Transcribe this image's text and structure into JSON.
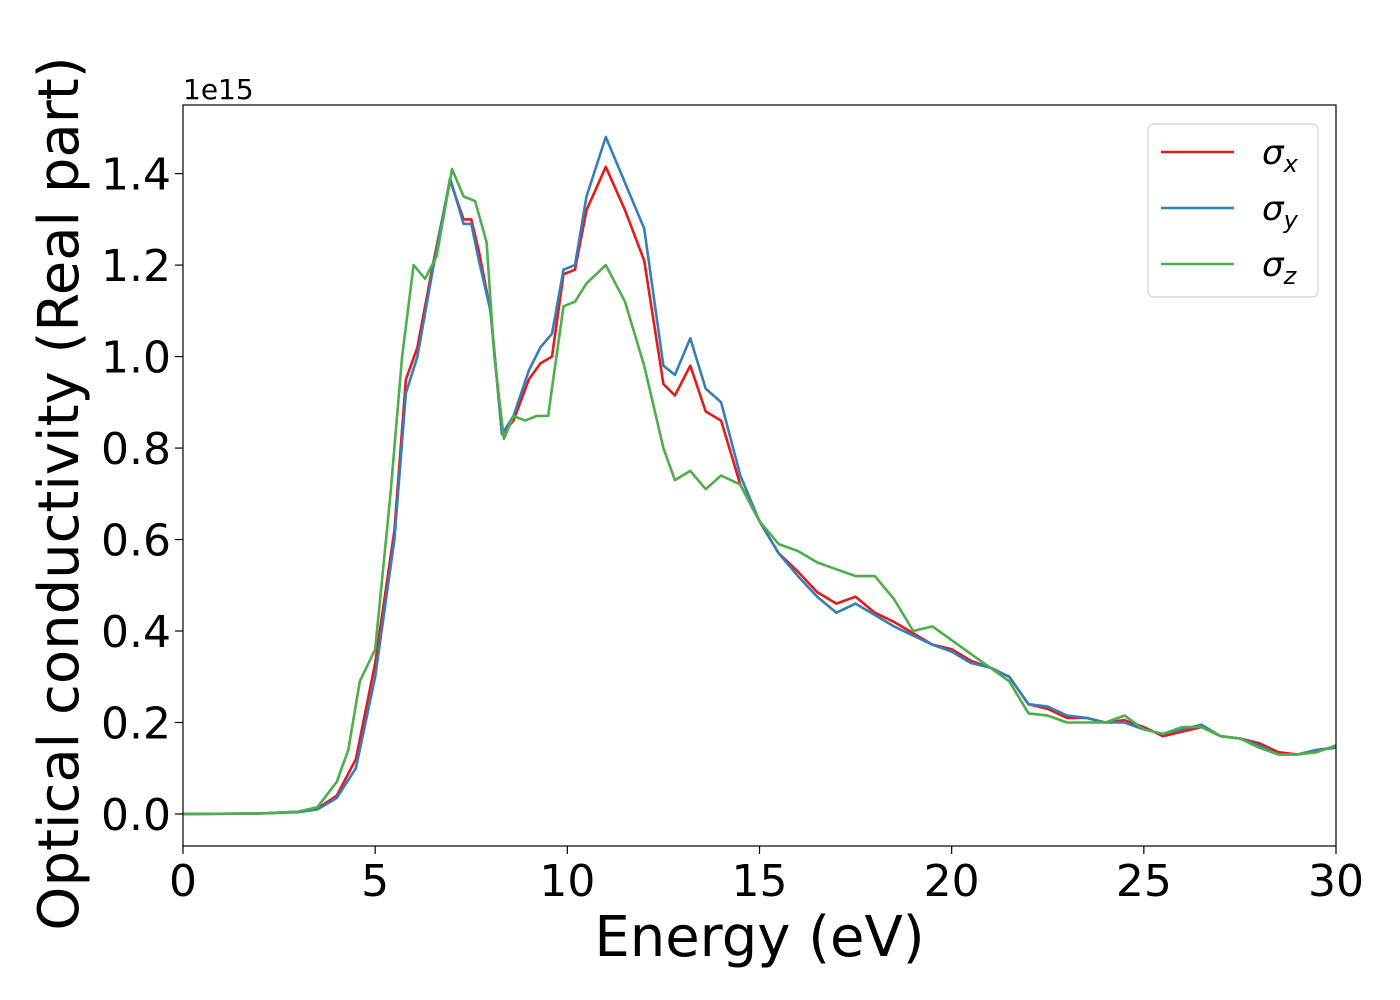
{
  "chart_data": {
    "type": "line",
    "xlabel": "Energy (eV)",
    "ylabel": "Optical conductivity (Real part)",
    "y_offset_text": "1e15",
    "xlim": [
      0,
      30
    ],
    "ylim": [
      -0.07,
      1.55
    ],
    "x_ticks": [
      0,
      5,
      10,
      15,
      20,
      25,
      30
    ],
    "x_tick_labels": [
      "0",
      "5",
      "10",
      "15",
      "20",
      "25",
      "30"
    ],
    "y_ticks": [
      0.0,
      0.2,
      0.4,
      0.6,
      0.8,
      1.0,
      1.2,
      1.4
    ],
    "y_tick_labels": [
      "0.0",
      "0.2",
      "0.4",
      "0.6",
      "0.8",
      "1.0",
      "1.2",
      "1.4"
    ],
    "grid": false,
    "legend_position": "top-right",
    "series": [
      {
        "name": "σ",
        "subscript": "x",
        "color": "#e41a1c",
        "points": [
          [
            0,
            0
          ],
          [
            2,
            0.001
          ],
          [
            3,
            0.005
          ],
          [
            3.5,
            0.012
          ],
          [
            4,
            0.04
          ],
          [
            4.5,
            0.12
          ],
          [
            5,
            0.33
          ],
          [
            5.5,
            0.62
          ],
          [
            5.8,
            0.95
          ],
          [
            6.1,
            1.02
          ],
          [
            6.5,
            1.2
          ],
          [
            6.95,
            1.385
          ],
          [
            7.3,
            1.3
          ],
          [
            7.5,
            1.3
          ],
          [
            7.7,
            1.23
          ],
          [
            8,
            1.1
          ],
          [
            8.3,
            0.83
          ],
          [
            8.6,
            0.86
          ],
          [
            9.0,
            0.95
          ],
          [
            9.3,
            0.985
          ],
          [
            9.6,
            1.0
          ],
          [
            9.9,
            1.18
          ],
          [
            10.2,
            1.19
          ],
          [
            10.5,
            1.32
          ],
          [
            11.0,
            1.415
          ],
          [
            11.5,
            1.32
          ],
          [
            12.0,
            1.21
          ],
          [
            12.5,
            0.94
          ],
          [
            12.8,
            0.915
          ],
          [
            13.2,
            0.98
          ],
          [
            13.6,
            0.88
          ],
          [
            14.0,
            0.86
          ],
          [
            14.5,
            0.72
          ],
          [
            15,
            0.64
          ],
          [
            15.5,
            0.57
          ],
          [
            16,
            0.53
          ],
          [
            16.5,
            0.485
          ],
          [
            17,
            0.46
          ],
          [
            17.5,
            0.475
          ],
          [
            18,
            0.44
          ],
          [
            18.5,
            0.42
          ],
          [
            19,
            0.395
          ],
          [
            19.5,
            0.37
          ],
          [
            20,
            0.36
          ],
          [
            20.5,
            0.335
          ],
          [
            21,
            0.32
          ],
          [
            21.5,
            0.3
          ],
          [
            22,
            0.24
          ],
          [
            22.5,
            0.23
          ],
          [
            23,
            0.21
          ],
          [
            23.5,
            0.21
          ],
          [
            24,
            0.2
          ],
          [
            24.5,
            0.205
          ],
          [
            25,
            0.19
          ],
          [
            25.5,
            0.17
          ],
          [
            26,
            0.18
          ],
          [
            26.5,
            0.19
          ],
          [
            27,
            0.17
          ],
          [
            27.5,
            0.165
          ],
          [
            28,
            0.155
          ],
          [
            28.5,
            0.135
          ],
          [
            29,
            0.13
          ],
          [
            29.5,
            0.14
          ],
          [
            30,
            0.145
          ]
        ]
      },
      {
        "name": "σ",
        "subscript": "y",
        "color": "#377eb8",
        "points": [
          [
            0,
            0
          ],
          [
            2,
            0.001
          ],
          [
            3,
            0.004
          ],
          [
            3.5,
            0.01
          ],
          [
            4,
            0.035
          ],
          [
            4.5,
            0.1
          ],
          [
            5,
            0.3
          ],
          [
            5.5,
            0.6
          ],
          [
            5.8,
            0.92
          ],
          [
            6.1,
            1.0
          ],
          [
            6.5,
            1.19
          ],
          [
            6.95,
            1.39
          ],
          [
            7.3,
            1.29
          ],
          [
            7.5,
            1.29
          ],
          [
            7.7,
            1.21
          ],
          [
            8,
            1.1
          ],
          [
            8.3,
            0.83
          ],
          [
            8.6,
            0.87
          ],
          [
            9.0,
            0.97
          ],
          [
            9.3,
            1.02
          ],
          [
            9.6,
            1.05
          ],
          [
            9.9,
            1.19
          ],
          [
            10.2,
            1.2
          ],
          [
            10.5,
            1.35
          ],
          [
            11.0,
            1.48
          ],
          [
            11.5,
            1.38
          ],
          [
            12.0,
            1.28
          ],
          [
            12.5,
            0.98
          ],
          [
            12.8,
            0.96
          ],
          [
            13.2,
            1.04
          ],
          [
            13.6,
            0.93
          ],
          [
            14.0,
            0.9
          ],
          [
            14.5,
            0.74
          ],
          [
            15,
            0.64
          ],
          [
            15.5,
            0.57
          ],
          [
            16,
            0.52
          ],
          [
            16.5,
            0.475
          ],
          [
            17,
            0.44
          ],
          [
            17.5,
            0.46
          ],
          [
            18,
            0.435
          ],
          [
            18.5,
            0.41
          ],
          [
            19,
            0.39
          ],
          [
            19.5,
            0.37
          ],
          [
            20,
            0.355
          ],
          [
            20.5,
            0.33
          ],
          [
            21,
            0.32
          ],
          [
            21.5,
            0.3
          ],
          [
            22,
            0.24
          ],
          [
            22.5,
            0.235
          ],
          [
            23,
            0.215
          ],
          [
            23.5,
            0.21
          ],
          [
            24,
            0.2
          ],
          [
            24.5,
            0.2
          ],
          [
            25,
            0.185
          ],
          [
            25.5,
            0.175
          ],
          [
            26,
            0.185
          ],
          [
            26.5,
            0.195
          ],
          [
            27,
            0.17
          ],
          [
            27.5,
            0.165
          ],
          [
            28,
            0.15
          ],
          [
            28.5,
            0.13
          ],
          [
            29,
            0.13
          ],
          [
            29.5,
            0.14
          ],
          [
            30,
            0.145
          ]
        ]
      },
      {
        "name": "σ",
        "subscript": "z",
        "color": "#4daf4a",
        "points": [
          [
            0,
            0
          ],
          [
            2,
            0.001
          ],
          [
            3,
            0.005
          ],
          [
            3.5,
            0.015
          ],
          [
            4,
            0.07
          ],
          [
            4.3,
            0.14
          ],
          [
            4.6,
            0.29
          ],
          [
            5.0,
            0.36
          ],
          [
            5.4,
            0.7
          ],
          [
            5.7,
            1.0
          ],
          [
            6.0,
            1.2
          ],
          [
            6.3,
            1.17
          ],
          [
            6.6,
            1.22
          ],
          [
            7.0,
            1.41
          ],
          [
            7.3,
            1.35
          ],
          [
            7.6,
            1.34
          ],
          [
            7.9,
            1.25
          ],
          [
            8.1,
            1.0
          ],
          [
            8.35,
            0.82
          ],
          [
            8.6,
            0.87
          ],
          [
            8.9,
            0.86
          ],
          [
            9.2,
            0.87
          ],
          [
            9.5,
            0.87
          ],
          [
            9.9,
            1.11
          ],
          [
            10.2,
            1.12
          ],
          [
            10.5,
            1.16
          ],
          [
            11.0,
            1.2
          ],
          [
            11.5,
            1.12
          ],
          [
            12.0,
            0.98
          ],
          [
            12.5,
            0.8
          ],
          [
            12.8,
            0.73
          ],
          [
            13.2,
            0.75
          ],
          [
            13.6,
            0.71
          ],
          [
            14.0,
            0.74
          ],
          [
            14.5,
            0.72
          ],
          [
            15,
            0.64
          ],
          [
            15.5,
            0.59
          ],
          [
            16,
            0.575
          ],
          [
            16.5,
            0.55
          ],
          [
            17,
            0.535
          ],
          [
            17.5,
            0.52
          ],
          [
            18,
            0.52
          ],
          [
            18.5,
            0.47
          ],
          [
            19,
            0.4
          ],
          [
            19.5,
            0.41
          ],
          [
            20,
            0.38
          ],
          [
            20.5,
            0.35
          ],
          [
            21,
            0.32
          ],
          [
            21.5,
            0.29
          ],
          [
            22,
            0.22
          ],
          [
            22.5,
            0.215
          ],
          [
            23,
            0.2
          ],
          [
            23.5,
            0.2
          ],
          [
            24,
            0.2
          ],
          [
            24.5,
            0.215
          ],
          [
            25,
            0.185
          ],
          [
            25.5,
            0.175
          ],
          [
            26,
            0.19
          ],
          [
            26.5,
            0.19
          ],
          [
            27,
            0.17
          ],
          [
            27.5,
            0.165
          ],
          [
            28,
            0.145
          ],
          [
            28.5,
            0.13
          ],
          [
            29,
            0.13
          ],
          [
            29.5,
            0.135
          ],
          [
            30,
            0.15
          ]
        ]
      }
    ]
  }
}
